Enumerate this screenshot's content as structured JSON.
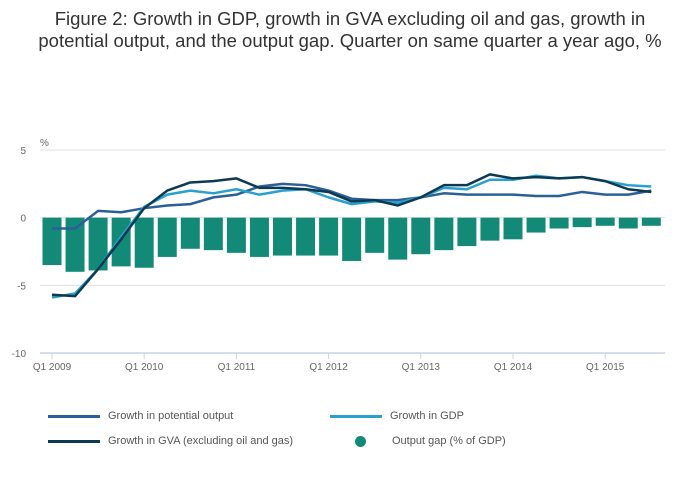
{
  "chart_data": {
    "type": "bar+line",
    "title": "Figure 2: Growth in GDP, growth in GVA excluding oil and gas, growth in potential output, and the output gap. Quarter on same quarter a year ago, %",
    "ylabel": "%",
    "ylim": [
      -10,
      5
    ],
    "yticks": [
      "5",
      "0",
      "-5",
      "-10"
    ],
    "ytick_values": [
      5,
      0,
      -5,
      -10
    ],
    "xtick_labels": [
      "Q1 2009",
      "Q1 2010",
      "Q1 2011",
      "Q1 2012",
      "Q1 2013",
      "Q1 2014",
      "Q1 2015"
    ],
    "n_quarters": 27,
    "series": [
      {
        "name": "Growth in potential output",
        "type": "line",
        "color": "#2a6097",
        "values": [
          -0.8,
          -0.8,
          0.5,
          0.4,
          0.7,
          0.9,
          1.0,
          1.5,
          1.7,
          2.3,
          2.5,
          2.4,
          2.0,
          1.4,
          1.3,
          1.3,
          1.5,
          1.8,
          1.7,
          1.7,
          1.7,
          1.6,
          1.6,
          1.9,
          1.7,
          1.7,
          2.0
        ]
      },
      {
        "name": "Growth in GDP",
        "type": "line",
        "color": "#2aa0d0",
        "values": [
          -5.9,
          -5.6,
          -3.8,
          -1.4,
          0.8,
          1.7,
          2.0,
          1.8,
          2.1,
          1.7,
          2.0,
          2.1,
          1.5,
          1.0,
          1.2,
          1.1,
          1.5,
          2.2,
          2.1,
          2.8,
          2.8,
          3.1,
          2.9,
          3.0,
          2.7,
          2.4,
          2.3
        ]
      },
      {
        "name": "Growth in GVA (excluding oil and gas)",
        "type": "line",
        "color": "#0b3a52",
        "values": [
          -5.7,
          -5.8,
          -3.8,
          -1.6,
          0.7,
          2.0,
          2.6,
          2.7,
          2.9,
          2.2,
          2.2,
          2.1,
          1.9,
          1.2,
          1.3,
          0.9,
          1.5,
          2.4,
          2.4,
          3.2,
          2.9,
          3.0,
          2.9,
          3.0,
          2.7,
          2.1,
          1.9
        ]
      },
      {
        "name": "Output gap (% of GDP)",
        "type": "bar",
        "color": "#138a78",
        "values": [
          -3.5,
          -4.0,
          -3.9,
          -3.6,
          -3.7,
          -2.9,
          -2.3,
          -2.4,
          -2.6,
          -2.9,
          -2.8,
          -2.8,
          -2.8,
          -3.2,
          -2.6,
          -3.1,
          -2.7,
          -2.4,
          -2.1,
          -1.7,
          -1.6,
          -1.1,
          -0.8,
          -0.7,
          -0.6,
          -0.8,
          -0.6
        ]
      }
    ],
    "legend_placement": "bottom"
  }
}
